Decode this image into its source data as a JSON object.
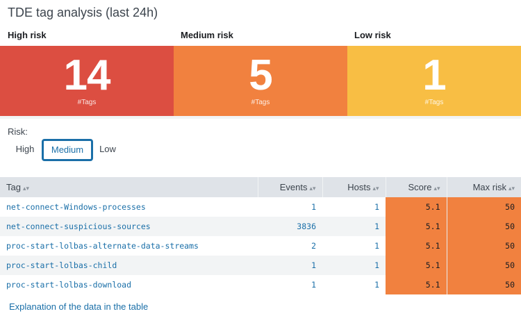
{
  "title": "TDE tag analysis (last 24h)",
  "risk_levels": [
    {
      "label": "High risk",
      "count": "14",
      "unit": "#Tags",
      "color": "#dc4e41"
    },
    {
      "label": "Medium risk",
      "count": "5",
      "unit": "#Tags",
      "color": "#f1813f"
    },
    {
      "label": "Low risk",
      "count": "1",
      "unit": "#Tags",
      "color": "#f8be44"
    }
  ],
  "filter": {
    "label": "Risk:",
    "options": [
      "High",
      "Medium",
      "Low"
    ],
    "selected": "Medium"
  },
  "table": {
    "columns": [
      "Tag",
      "Events",
      "Hosts",
      "Score",
      "Max risk"
    ],
    "rows": [
      [
        "net-connect-Windows-processes",
        "1",
        "1",
        "5.1",
        "50"
      ],
      [
        "net-connect-suspicious-sources",
        "3836",
        "1",
        "5.1",
        "50"
      ],
      [
        "proc-start-lolbas-alternate-data-streams",
        "2",
        "1",
        "5.1",
        "50"
      ],
      [
        "proc-start-lolbas-child",
        "1",
        "1",
        "5.1",
        "50"
      ],
      [
        "proc-start-lolbas-download",
        "1",
        "1",
        "5.1",
        "50"
      ]
    ]
  },
  "footer_link": "Explanation of the data in the table"
}
